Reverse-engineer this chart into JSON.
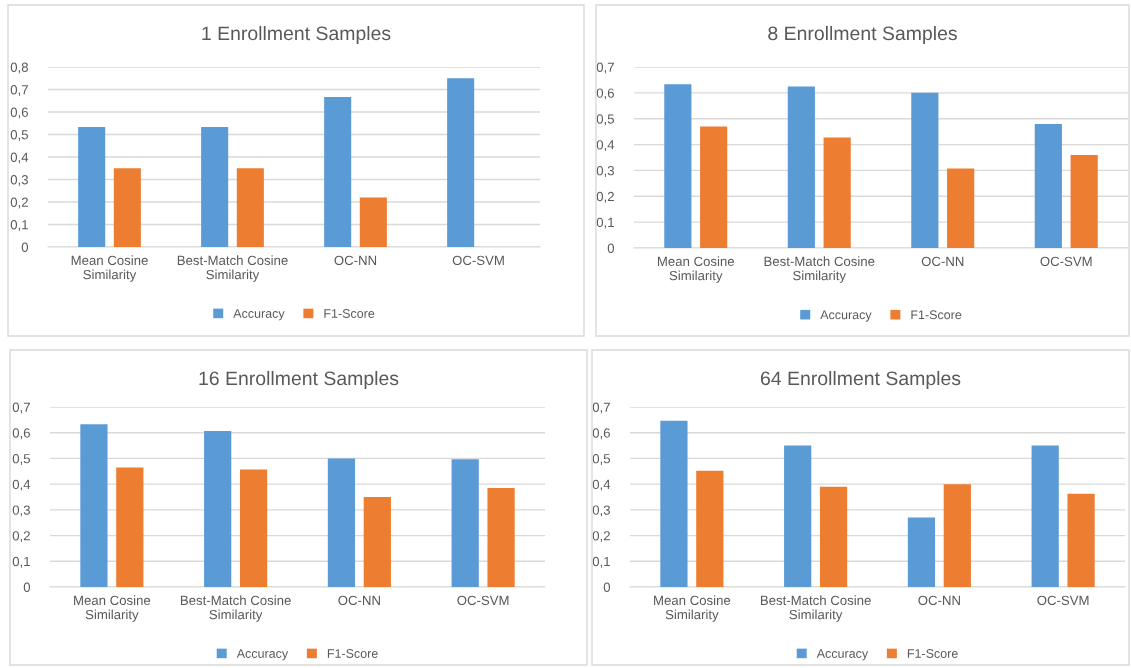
{
  "chart_data": [
    {
      "type": "bar",
      "title": "1 Enrollment Samples",
      "categories": [
        "Mean Cosine\nSimilarity",
        "Best-Match Cosine\nSimilarity",
        "OC-NN",
        "OC-SVM"
      ],
      "series": [
        {
          "name": "Accuracy",
          "color": "#5b9bd5",
          "values": [
            0.533,
            0.533,
            0.667,
            0.75
          ]
        },
        {
          "name": "F1-Score",
          "color": "#ed7d31",
          "values": [
            0.35,
            0.35,
            0.22,
            0
          ]
        }
      ],
      "ylim": [
        0,
        0.8
      ],
      "yticks": [
        0,
        {
          "value": 0.1,
          "label": "0,1"
        },
        {
          "value": 0.2,
          "label": "0,2"
        },
        {
          "value": 0.3,
          "label": "0,3"
        },
        {
          "value": 0.4,
          "label": "0,4"
        },
        {
          "value": 0.5,
          "label": "0,5"
        },
        {
          "value": 0.6,
          "label": "0,6"
        },
        {
          "value": 0.7,
          "label": "0,7"
        },
        {
          "value": 0.8,
          "label": "0,8"
        }
      ],
      "grid": "y",
      "legend": "bottom"
    },
    {
      "type": "bar",
      "title": "8 Enrollment Samples",
      "categories": [
        "Mean Cosine\nSimilarity",
        "Best-Match Cosine\nSimilarity",
        "OC-NN",
        "OC-SVM"
      ],
      "series": [
        {
          "name": "Accuracy",
          "color": "#5b9bd5",
          "values": [
            0.633,
            0.625,
            0.6,
            0.48
          ]
        },
        {
          "name": "F1-Score",
          "color": "#ed7d31",
          "values": [
            0.47,
            0.427,
            0.307,
            0.36
          ]
        }
      ],
      "ylim": [
        0,
        0.7
      ],
      "yticks": [
        0,
        {
          "value": 0.1,
          "label": "0,1"
        },
        {
          "value": 0.2,
          "label": "0,2"
        },
        {
          "value": 0.3,
          "label": "0,3"
        },
        {
          "value": 0.4,
          "label": "0,4"
        },
        {
          "value": 0.5,
          "label": "0,5"
        },
        {
          "value": 0.6,
          "label": "0,6"
        },
        {
          "value": 0.7,
          "label": "0,7"
        }
      ],
      "grid": "y",
      "legend": "bottom"
    },
    {
      "type": "bar",
      "title": "16 Enrollment Samples",
      "categories": [
        "Mean Cosine\nSimilarity",
        "Best-Match Cosine\nSimilarity",
        "OC-NN",
        "OC-SVM"
      ],
      "series": [
        {
          "name": "Accuracy",
          "color": "#5b9bd5",
          "values": [
            0.633,
            0.607,
            0.5,
            0.497
          ]
        },
        {
          "name": "F1-Score",
          "color": "#ed7d31",
          "values": [
            0.465,
            0.457,
            0.35,
            0.385
          ]
        }
      ],
      "ylim": [
        0,
        0.7
      ],
      "yticks": [
        0,
        {
          "value": 0.1,
          "label": "0,1"
        },
        {
          "value": 0.2,
          "label": "0,2"
        },
        {
          "value": 0.3,
          "label": "0,3"
        },
        {
          "value": 0.4,
          "label": "0,4"
        },
        {
          "value": 0.5,
          "label": "0,5"
        },
        {
          "value": 0.6,
          "label": "0,6"
        },
        {
          "value": 0.7,
          "label": "0,7"
        }
      ],
      "grid": "y",
      "legend": "bottom"
    },
    {
      "type": "bar",
      "title": "64 Enrollment Samples",
      "categories": [
        "Mean Cosine\nSimilarity",
        "Best-Match Cosine\nSimilarity",
        "OC-NN",
        "OC-SVM"
      ],
      "series": [
        {
          "name": "Accuracy",
          "color": "#5b9bd5",
          "values": [
            0.647,
            0.55,
            0.27,
            0.55
          ]
        },
        {
          "name": "F1-Score",
          "color": "#ed7d31",
          "values": [
            0.452,
            0.39,
            0.4,
            0.363
          ]
        }
      ],
      "ylim": [
        0,
        0.7
      ],
      "yticks": [
        0,
        {
          "value": 0.1,
          "label": "0,1"
        },
        {
          "value": 0.2,
          "label": "0,2"
        },
        {
          "value": 0.3,
          "label": "0,3"
        },
        {
          "value": 0.4,
          "label": "0,4"
        },
        {
          "value": 0.5,
          "label": "0,5"
        },
        {
          "value": 0.6,
          "label": "0,6"
        },
        {
          "value": 0.7,
          "label": "0,7"
        }
      ],
      "grid": "y",
      "legend": "bottom"
    }
  ]
}
